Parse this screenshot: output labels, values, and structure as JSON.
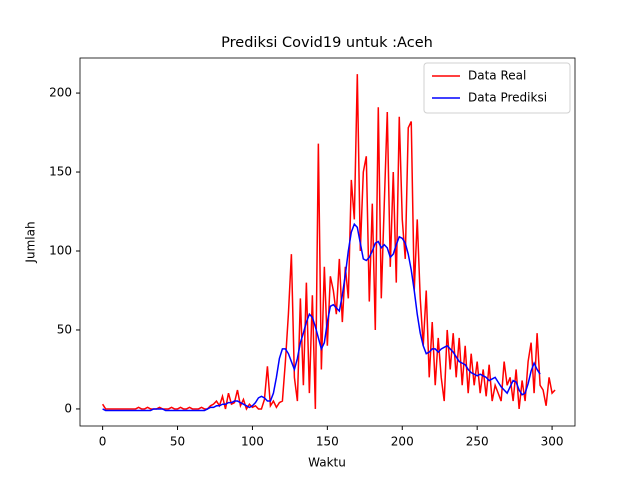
{
  "chart_data": {
    "type": "line",
    "title": "Prediksi Covid19 untuk :Aceh",
    "x_label": "Waktu",
    "y_label": "Jumlah",
    "x": [
      0,
      2,
      4,
      6,
      8,
      10,
      12,
      14,
      16,
      18,
      20,
      22,
      24,
      26,
      28,
      30,
      32,
      34,
      36,
      38,
      40,
      42,
      44,
      46,
      48,
      50,
      52,
      54,
      56,
      58,
      60,
      62,
      64,
      66,
      68,
      70,
      72,
      74,
      76,
      78,
      80,
      82,
      84,
      86,
      88,
      90,
      92,
      94,
      96,
      98,
      100,
      102,
      104,
      106,
      108,
      110,
      112,
      114,
      116,
      118,
      120,
      122,
      124,
      126,
      128,
      130,
      132,
      134,
      136,
      138,
      140,
      142,
      144,
      146,
      148,
      150,
      152,
      154,
      156,
      158,
      160,
      162,
      164,
      166,
      168,
      170,
      172,
      174,
      176,
      178,
      180,
      182,
      184,
      186,
      188,
      190,
      192,
      194,
      196,
      198,
      200,
      202,
      204,
      206,
      208,
      210,
      212,
      214,
      216,
      218,
      220,
      222,
      224,
      226,
      228,
      230,
      232,
      234,
      236,
      238,
      240,
      242,
      244,
      246,
      248,
      250,
      252,
      254,
      256,
      258,
      260,
      262,
      264,
      266,
      268,
      270,
      272,
      274,
      276,
      278,
      280,
      282,
      284,
      286,
      288,
      290,
      292,
      294,
      296,
      298,
      300,
      302
    ],
    "series": [
      {
        "name": "Data Real",
        "color": "#ff0000",
        "values": [
          3,
          0,
          0,
          0,
          0,
          0,
          0,
          0,
          0,
          0,
          0,
          0,
          1,
          0,
          0,
          1,
          0,
          0,
          0,
          1,
          0,
          0,
          0,
          1,
          0,
          0,
          1,
          0,
          0,
          1,
          0,
          0,
          0,
          1,
          0,
          0,
          2,
          3,
          5,
          2,
          8,
          0,
          10,
          3,
          4,
          12,
          2,
          6,
          0,
          3,
          1,
          2,
          0,
          0,
          6,
          27,
          2,
          5,
          1,
          4,
          5,
          30,
          60,
          98,
          20,
          5,
          70,
          15,
          80,
          10,
          72,
          0,
          168,
          25,
          90,
          40,
          84,
          75,
          60,
          95,
          55,
          90,
          70,
          145,
          120,
          212,
          100,
          150,
          160,
          68,
          130,
          50,
          191,
          70,
          130,
          188,
          90,
          150,
          80,
          185,
          120,
          95,
          178,
          182,
          75,
          120,
          70,
          40,
          75,
          20,
          55,
          15,
          45,
          20,
          5,
          50,
          25,
          48,
          20,
          45,
          15,
          40,
          10,
          35,
          15,
          30,
          10,
          25,
          8,
          28,
          5,
          15,
          10,
          5,
          30,
          15,
          20,
          5,
          25,
          0,
          18,
          5,
          30,
          42,
          10,
          48,
          15,
          12,
          2,
          20,
          10,
          12
        ]
      },
      {
        "name": "Data Prediksi",
        "color": "#0000ff",
        "values": [
          0,
          -1,
          -1,
          -1,
          -1,
          -1,
          -1,
          -1,
          -1,
          -1,
          -1,
          -1,
          -1,
          -1,
          -1,
          -1,
          -1,
          0,
          0,
          0,
          0,
          -1,
          -1,
          -1,
          -1,
          -1,
          -1,
          -1,
          -1,
          -1,
          -1,
          -1,
          -1,
          -1,
          -1,
          0,
          1,
          1,
          2,
          2,
          3,
          3,
          4,
          4,
          5,
          5,
          4,
          3,
          2,
          1,
          2,
          4,
          7,
          8,
          7,
          5,
          5,
          10,
          20,
          32,
          38,
          38,
          35,
          30,
          25,
          32,
          42,
          48,
          55,
          60,
          58,
          52,
          45,
          38,
          42,
          55,
          65,
          66,
          64,
          62,
          72,
          85,
          100,
          112,
          117,
          115,
          105,
          95,
          94,
          96,
          100,
          105,
          106,
          102,
          104,
          102,
          96,
          98,
          104,
          109,
          108,
          105,
          98,
          88,
          75,
          60,
          48,
          40,
          35,
          36,
          38,
          38,
          36,
          38,
          39,
          40,
          38,
          36,
          33,
          30,
          29,
          28,
          25,
          23,
          22,
          21,
          22,
          21,
          20,
          18,
          19,
          20,
          17,
          14,
          12,
          10,
          14,
          18,
          17,
          12,
          9,
          10,
          16,
          24,
          29,
          25,
          22,
          null,
          null,
          null,
          null,
          null
        ]
      }
    ],
    "xlim": [
      -15.1,
      315.3
    ],
    "ylim": [
      -10.8,
      222.2
    ],
    "xticks": [
      0,
      50,
      100,
      150,
      200,
      250,
      300
    ],
    "yticks": [
      0,
      50,
      100,
      150,
      200
    ],
    "legend": "upper right"
  }
}
